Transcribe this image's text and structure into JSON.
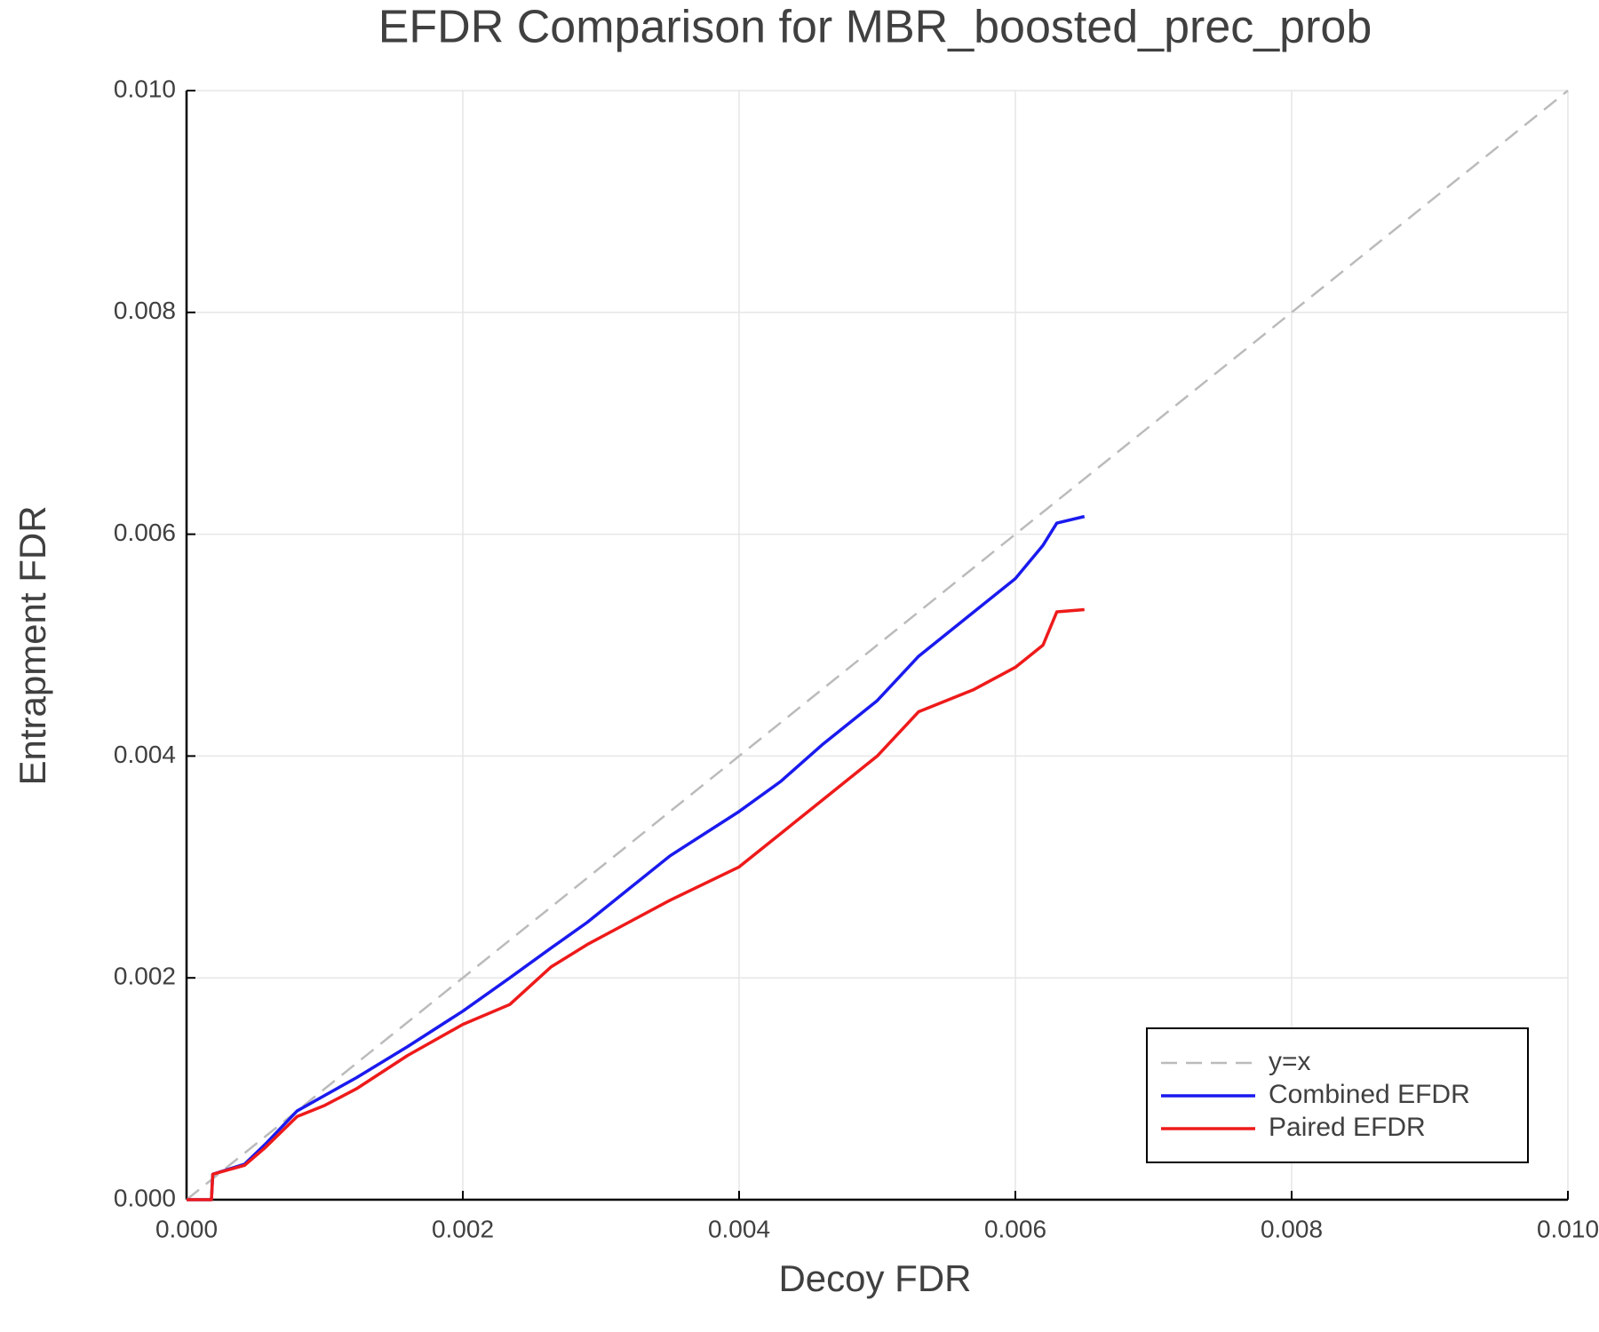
{
  "chart_data": {
    "type": "line",
    "title": "EFDR Comparison for MBR_boosted_prec_prob",
    "xlabel": "Decoy FDR",
    "ylabel": "Entrapment FDR",
    "xlim": [
      0,
      0.01
    ],
    "ylim": [
      0,
      0.01
    ],
    "xticks": [
      {
        "value": 0,
        "label": "0.000"
      },
      0.002,
      0.004,
      0.006,
      0.008,
      {
        "value": 0.01,
        "label": "0.010"
      }
    ],
    "yticks": [
      {
        "value": 0,
        "label": "0.000"
      },
      0.002,
      0.004,
      0.006,
      0.008,
      {
        "value": 0.01,
        "label": "0.010"
      }
    ],
    "grid": true,
    "legend": "bottom-right",
    "series": [
      {
        "name": "y=x",
        "color": "#bbbbbb",
        "style": "dashed",
        "x": [
          0,
          0.01
        ],
        "values": [
          0,
          0.01
        ]
      },
      {
        "name": "Combined EFDR",
        "color": "#1a1aee",
        "style": "solid",
        "x": [
          0,
          0.00018,
          0.00019,
          0.00042,
          0.00057,
          0.0008,
          0.001,
          0.00123,
          0.0016,
          0.002,
          0.00234,
          0.00264,
          0.0029,
          0.0032,
          0.0035,
          0.004,
          0.0043,
          0.0046,
          0.005,
          0.0053,
          0.0057,
          0.006,
          0.0062,
          0.0063,
          0.0065
        ],
        "values": [
          0,
          0,
          0.00023,
          0.00032,
          0.0005,
          0.0008,
          0.00094,
          0.0011,
          0.00138,
          0.0017,
          0.002,
          0.00227,
          0.0025,
          0.0028,
          0.0031,
          0.0035,
          0.00377,
          0.0041,
          0.0045,
          0.0049,
          0.0053,
          0.0056,
          0.0059,
          0.0061,
          0.00616
        ]
      },
      {
        "name": "Paired EFDR",
        "color": "#ee1a1a",
        "style": "solid",
        "x": [
          0,
          0.00018,
          0.00019,
          0.00042,
          0.00057,
          0.0008,
          0.001,
          0.00123,
          0.0016,
          0.002,
          0.00234,
          0.00264,
          0.0029,
          0.0032,
          0.0035,
          0.004,
          0.0043,
          0.0046,
          0.005,
          0.0053,
          0.0057,
          0.006,
          0.0062,
          0.0063,
          0.0065
        ],
        "values": [
          0,
          0,
          0.00023,
          0.00031,
          0.00047,
          0.00075,
          0.00085,
          0.001,
          0.0013,
          0.00158,
          0.00176,
          0.0021,
          0.0023,
          0.0025,
          0.0027,
          0.003,
          0.0033,
          0.0036,
          0.004,
          0.0044,
          0.0046,
          0.0048,
          0.005,
          0.0053,
          0.00532
        ]
      }
    ]
  }
}
